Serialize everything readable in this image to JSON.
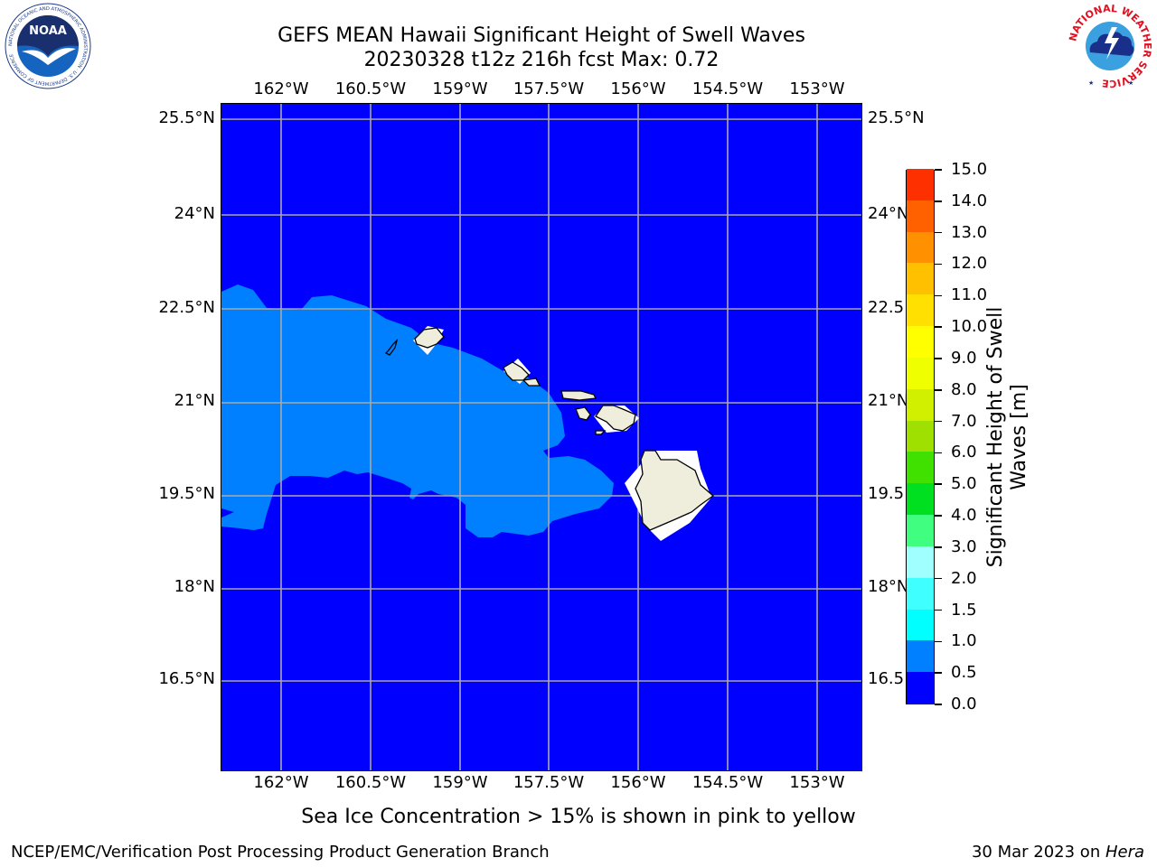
{
  "header": {
    "title_line1": "GEFS MEAN Hawaii Significant Height of Swell Waves",
    "title_line2": "20230328 t12z 216h fcst   Max: 0.72"
  },
  "logos": {
    "left": {
      "name": "noaa-logo",
      "text": "NOAA",
      "ring_text": "NATIONAL OCEANIC AND ATMOSPHERIC ADMINISTRATION · U.S. DEPARTMENT OF COMMERCE"
    },
    "right": {
      "name": "nws-logo",
      "ring_text": "NATIONAL WEATHER SERVICE"
    }
  },
  "map": {
    "lon_labels": [
      "162°W",
      "160.5°W",
      "159°W",
      "157.5°W",
      "156°W",
      "154.5°W",
      "153°W"
    ],
    "lat_labels_left": [
      "25.5°N",
      "24°N",
      "22.5°N",
      "21°N",
      "19.5°N",
      "18°N",
      "16.5°N"
    ],
    "lat_labels_right": [
      "25.5°N",
      "24°N",
      "22.5",
      "21°N",
      "19.5",
      "18°N",
      "16.5"
    ],
    "colors": {
      "ocean_0_05": "#0000ff",
      "ocean_05_10": "#0080ff",
      "land": "#efeedc",
      "grid": "#a9a9a9"
    }
  },
  "colorbar": {
    "label": "Significant Height of Swell Waves [m]",
    "label_line1": "Significant Height of Swell",
    "label_line2": "Waves [m]",
    "ticks": [
      "0.0",
      "0.5",
      "1.0",
      "1.5",
      "2.0",
      "3.0",
      "4.0",
      "5.0",
      "6.0",
      "7.0",
      "8.0",
      "9.0",
      "10.0",
      "11.0",
      "12.0",
      "13.0",
      "14.0",
      "15.0"
    ],
    "colors": [
      "#0000ff",
      "#0080ff",
      "#00ffff",
      "#40ffff",
      "#a0ffff",
      "#40ff80",
      "#00e020",
      "#40e000",
      "#a0e000",
      "#d0f000",
      "#f0ff00",
      "#ffff00",
      "#ffe000",
      "#ffc000",
      "#ff9000",
      "#ff6000",
      "#ff3000",
      "#ff0000"
    ]
  },
  "footer": {
    "note": "Sea Ice Concentration > 15% is shown in pink to yellow",
    "left": "NCEP/EMC/Verification Post Processing Product Generation Branch",
    "right_prefix": "30 Mar 2023 on ",
    "right_host": "Hera"
  }
}
